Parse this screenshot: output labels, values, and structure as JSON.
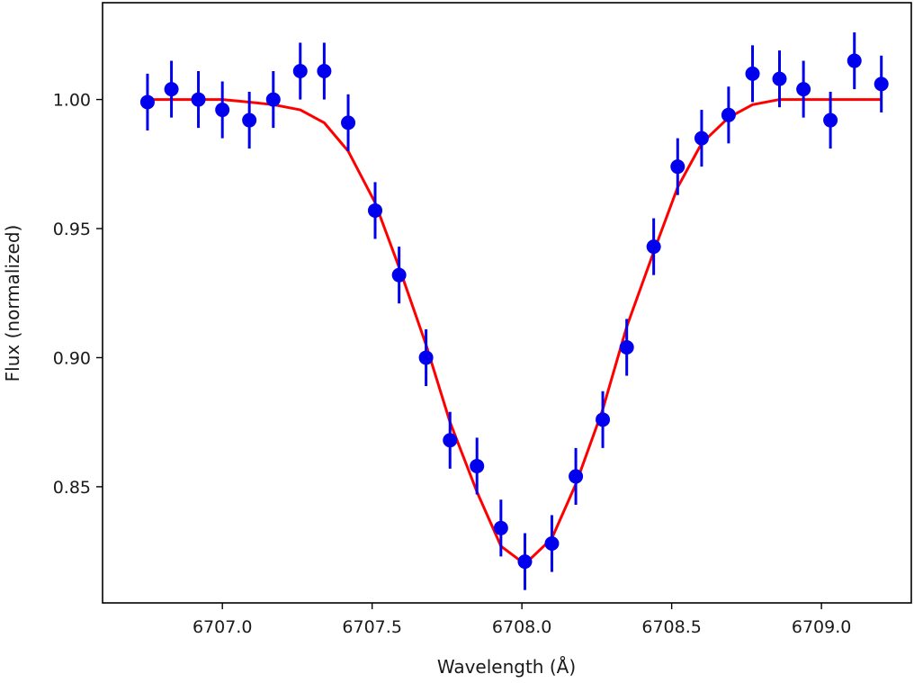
{
  "chart_data": {
    "type": "scatter",
    "xlabel": "Wavelength (Å)",
    "ylabel": "Flux (normalized)",
    "xlim": [
      6706.6,
      6709.3
    ],
    "ylim": [
      0.805,
      1.0375
    ],
    "x_ticks": [
      6707.0,
      6707.5,
      6708.0,
      6708.5,
      6709.0
    ],
    "x_tick_labels": [
      "6707.0",
      "6707.5",
      "6708.0",
      "6708.5",
      "6709.0"
    ],
    "y_ticks": [
      0.85,
      0.9,
      0.95,
      1.0
    ],
    "y_tick_labels": [
      "0.85",
      "0.90",
      "0.95",
      "1.00"
    ],
    "grid": false,
    "colors": {
      "points": "#0000ee",
      "model": "#ff0000",
      "axes": "#000000"
    },
    "series": [
      {
        "type": "errorbar",
        "x": [
          6706.75,
          6706.83,
          6706.92,
          6707.0,
          6707.09,
          6707.17,
          6707.26,
          6707.34,
          6707.42,
          6707.51,
          6707.59,
          6707.68,
          6707.76,
          6707.85,
          6707.93,
          6708.01,
          6708.1,
          6708.18,
          6708.27,
          6708.35,
          6708.44,
          6708.52,
          6708.6,
          6708.69,
          6708.77,
          6708.86,
          6708.94,
          6709.03,
          6709.11,
          6709.2
        ],
        "y": [
          0.999,
          1.004,
          1.0,
          0.996,
          0.992,
          1.0,
          1.011,
          1.011,
          0.991,
          0.957,
          0.932,
          0.9,
          0.868,
          0.858,
          0.834,
          0.821,
          0.828,
          0.854,
          0.876,
          0.904,
          0.943,
          0.974,
          0.985,
          0.994,
          1.01,
          1.008,
          1.004,
          0.992,
          1.015,
          1.006
        ],
        "yerr": [
          0.011,
          0.011,
          0.011,
          0.011,
          0.011,
          0.011,
          0.011,
          0.011,
          0.011,
          0.011,
          0.011,
          0.011,
          0.011,
          0.011,
          0.011,
          0.011,
          0.011,
          0.011,
          0.011,
          0.011,
          0.011,
          0.011,
          0.011,
          0.011,
          0.011,
          0.011,
          0.011,
          0.011,
          0.011,
          0.011
        ]
      },
      {
        "type": "line",
        "x": [
          6706.75,
          6706.83,
          6706.92,
          6707.0,
          6707.09,
          6707.17,
          6707.26,
          6707.34,
          6707.42,
          6707.51,
          6707.59,
          6707.68,
          6707.76,
          6707.85,
          6707.93,
          6708.01,
          6708.1,
          6708.18,
          6708.27,
          6708.35,
          6708.44,
          6708.52,
          6708.6,
          6708.69,
          6708.77,
          6708.86,
          6708.94,
          6709.03,
          6709.11,
          6709.2
        ],
        "y": [
          1.0,
          1.0,
          1.0,
          1.0,
          0.999,
          0.998,
          0.996,
          0.991,
          0.98,
          0.96,
          0.935,
          0.905,
          0.875,
          0.848,
          0.827,
          0.82,
          0.83,
          0.851,
          0.88,
          0.912,
          0.941,
          0.966,
          0.983,
          0.993,
          0.998,
          1.0,
          1.0,
          1.0,
          1.0,
          1.0
        ]
      }
    ]
  }
}
